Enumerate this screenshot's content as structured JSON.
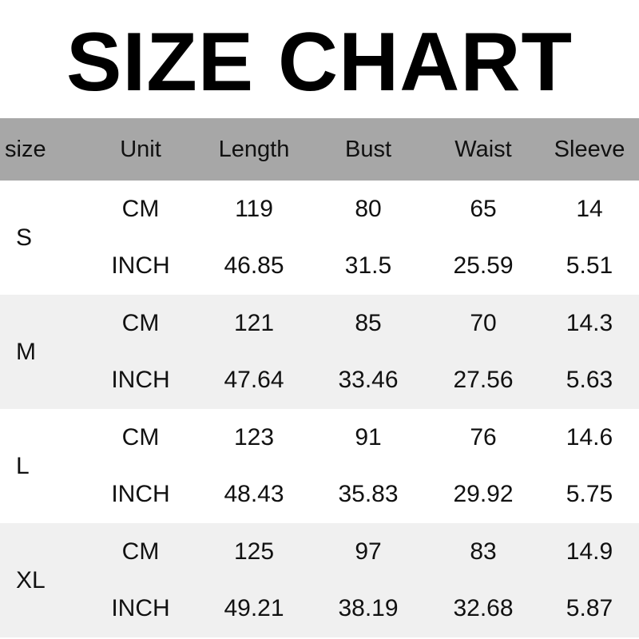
{
  "title": "SIZE CHART",
  "chart_data": {
    "type": "table",
    "title": "SIZE CHART",
    "columns": [
      "size",
      "Unit",
      "Length",
      "Bust",
      "Waist",
      "Sleeve"
    ],
    "rows": [
      {
        "size": "S",
        "cm": [
          "CM",
          "119",
          "80",
          "65",
          "14"
        ],
        "inch": [
          "INCH",
          "46.85",
          "31.5",
          "25.59",
          "5.51"
        ]
      },
      {
        "size": "M",
        "cm": [
          "CM",
          "121",
          "85",
          "70",
          "14.3"
        ],
        "inch": [
          "INCH",
          "47.64",
          "33.46",
          "27.56",
          "5.63"
        ]
      },
      {
        "size": "L",
        "cm": [
          "CM",
          "123",
          "91",
          "76",
          "14.6"
        ],
        "inch": [
          "INCH",
          "48.43",
          "35.83",
          "29.92",
          "5.75"
        ]
      },
      {
        "size": "XL",
        "cm": [
          "CM",
          "125",
          "97",
          "83",
          "14.9"
        ],
        "inch": [
          "INCH",
          "49.21",
          "38.19",
          "32.68",
          "5.87"
        ]
      }
    ]
  },
  "colors": {
    "header_bg": "#a7a7a7",
    "alt_row_bg": "#f0f0f0"
  }
}
